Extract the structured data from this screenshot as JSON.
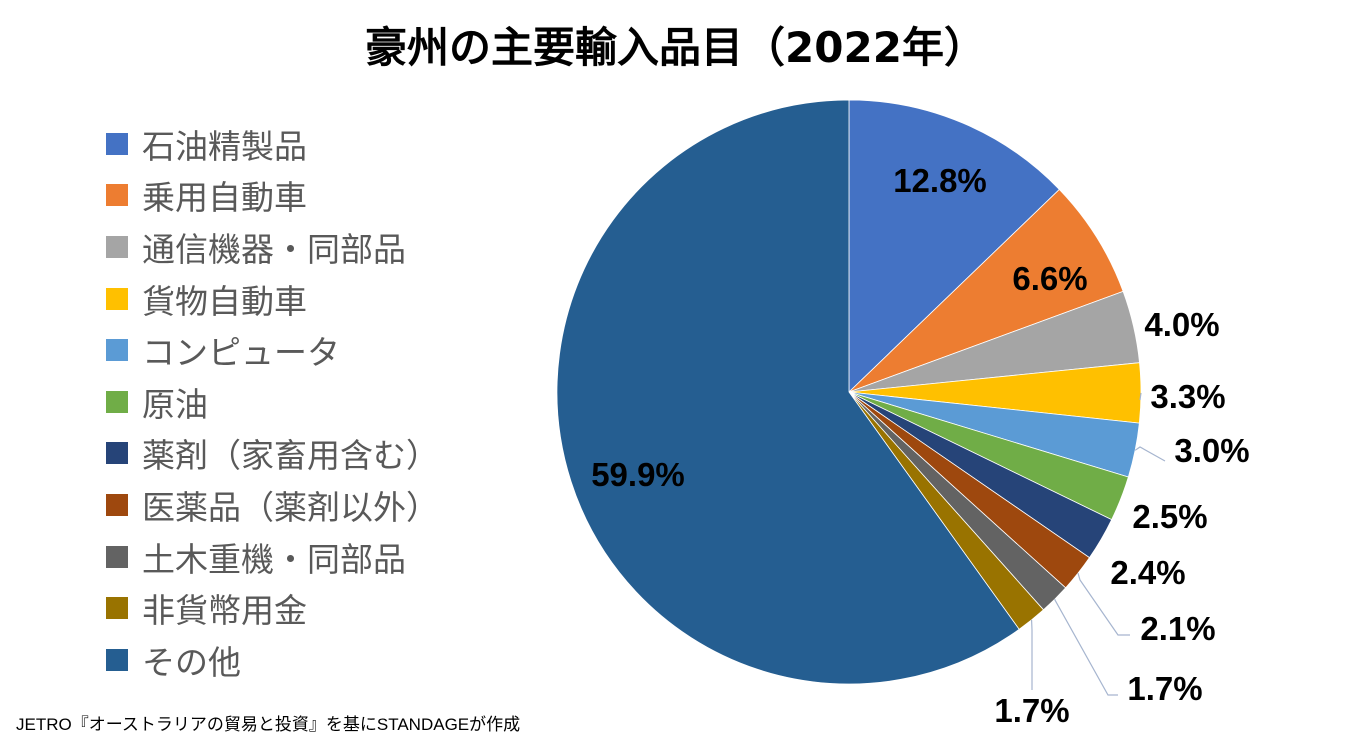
{
  "chart_data": {
    "type": "pie",
    "title": "豪州の主要輸入品目（2022年）",
    "start_angle": "12 o'clock",
    "direction": "clockwise",
    "legend_position": "left",
    "slices": [
      {
        "label": "石油精製品",
        "value": 12.8,
        "display": "12.8%",
        "color": "#4472C4"
      },
      {
        "label": "乗用自動車",
        "value": 6.6,
        "display": "6.6%",
        "color": "#ED7D31"
      },
      {
        "label": "通信機器・同部品",
        "value": 4.0,
        "display": "4.0%",
        "color": "#A5A5A5"
      },
      {
        "label": "貨物自動車",
        "value": 3.3,
        "display": "3.3%",
        "color": "#FFC000"
      },
      {
        "label": "コンピュータ",
        "value": 3.0,
        "display": "3.0%",
        "color": "#5B9BD5"
      },
      {
        "label": "原油",
        "value": 2.5,
        "display": "2.5%",
        "color": "#70AD47"
      },
      {
        "label": "薬剤（家畜用含む）",
        "value": 2.4,
        "display": "2.4%",
        "color": "#264478"
      },
      {
        "label": "医薬品（薬剤以外）",
        "value": 2.1,
        "display": "2.1%",
        "color": "#9E480E"
      },
      {
        "label": "土木重機・同部品",
        "value": 1.7,
        "display": "1.7%",
        "color": "#636363"
      },
      {
        "label": "非貨幣用金",
        "value": 1.7,
        "display": "1.7%",
        "color": "#997300"
      },
      {
        "label": "その他",
        "value": 59.9,
        "display": "59.9%",
        "color": "#255E91"
      }
    ]
  },
  "source": "JETRO『オーストラリアの貿易と投資』を基にSTANDAGEが作成"
}
